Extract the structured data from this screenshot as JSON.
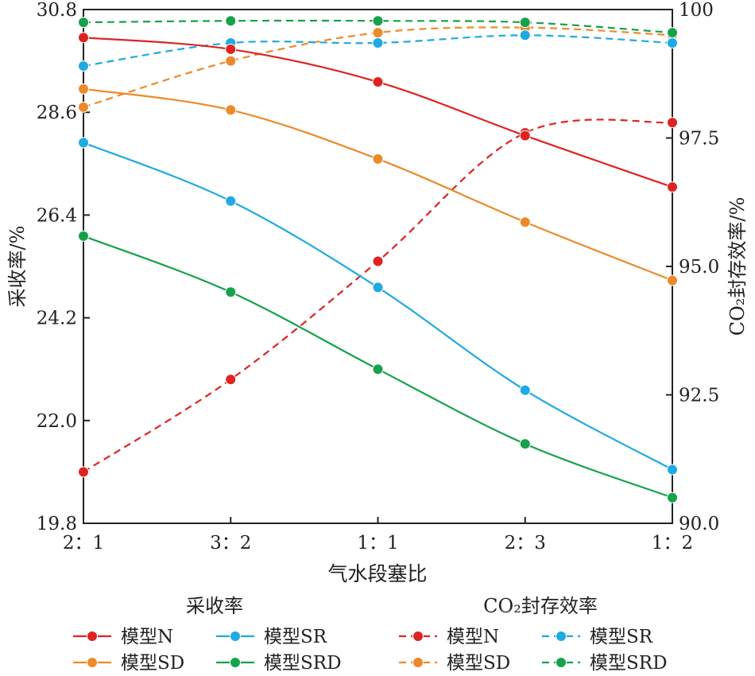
{
  "chart_data": {
    "type": "line",
    "xlabel": "气水段塞比",
    "categories": [
      "2：1",
      "3：2",
      "1：1",
      "2：3",
      "1：2"
    ],
    "left_axis": {
      "label": "采收率/%",
      "ylim": [
        19.8,
        30.8
      ],
      "ticks": [
        "19.8",
        "22.0",
        "24.2",
        "26.4",
        "28.6",
        "30.8"
      ]
    },
    "right_axis": {
      "label": "CO₂封存效率/%",
      "ylim": [
        90.0,
        100
      ],
      "ticks": [
        "90.0",
        "92.5",
        "95.0",
        "97.5",
        "100"
      ]
    },
    "series": [
      {
        "name": "模型N",
        "group": "recovery",
        "axis": "left",
        "color": "#dd2423",
        "values": [
          30.2,
          29.95,
          29.25,
          28.1,
          27.0
        ]
      },
      {
        "name": "模型SD",
        "group": "recovery",
        "axis": "left",
        "color": "#ec8a2a",
        "values": [
          29.1,
          28.65,
          27.6,
          26.25,
          25.0
        ]
      },
      {
        "name": "模型SR",
        "group": "recovery",
        "axis": "left",
        "color": "#1eaae2",
        "values": [
          27.95,
          26.7,
          24.85,
          22.65,
          20.95
        ]
      },
      {
        "name": "模型SRD",
        "group": "recovery",
        "axis": "left",
        "color": "#15a24b",
        "values": [
          25.95,
          24.75,
          23.1,
          21.5,
          20.35
        ]
      },
      {
        "name": "模型N",
        "group": "storage",
        "axis": "right",
        "color": "#dd2423",
        "values": [
          91.0,
          92.8,
          95.1,
          97.6,
          97.8
        ]
      },
      {
        "name": "模型SD",
        "group": "storage",
        "axis": "right",
        "color": "#ec8a2a",
        "values": [
          98.1,
          99.0,
          99.55,
          99.65,
          99.5
        ]
      },
      {
        "name": "模型SR",
        "group": "storage",
        "axis": "right",
        "color": "#1eaae2",
        "values": [
          98.9,
          99.35,
          99.35,
          99.5,
          99.35
        ]
      },
      {
        "name": "模型SRD",
        "group": "storage",
        "axis": "right",
        "color": "#15a24b",
        "values": [
          99.75,
          99.78,
          99.78,
          99.75,
          99.55
        ]
      }
    ],
    "legend": {
      "placement": "bottom",
      "groups": [
        {
          "id": "recovery",
          "title": "采收率"
        },
        {
          "id": "storage",
          "title": "CO₂封存效率"
        }
      ]
    },
    "grid": false
  }
}
